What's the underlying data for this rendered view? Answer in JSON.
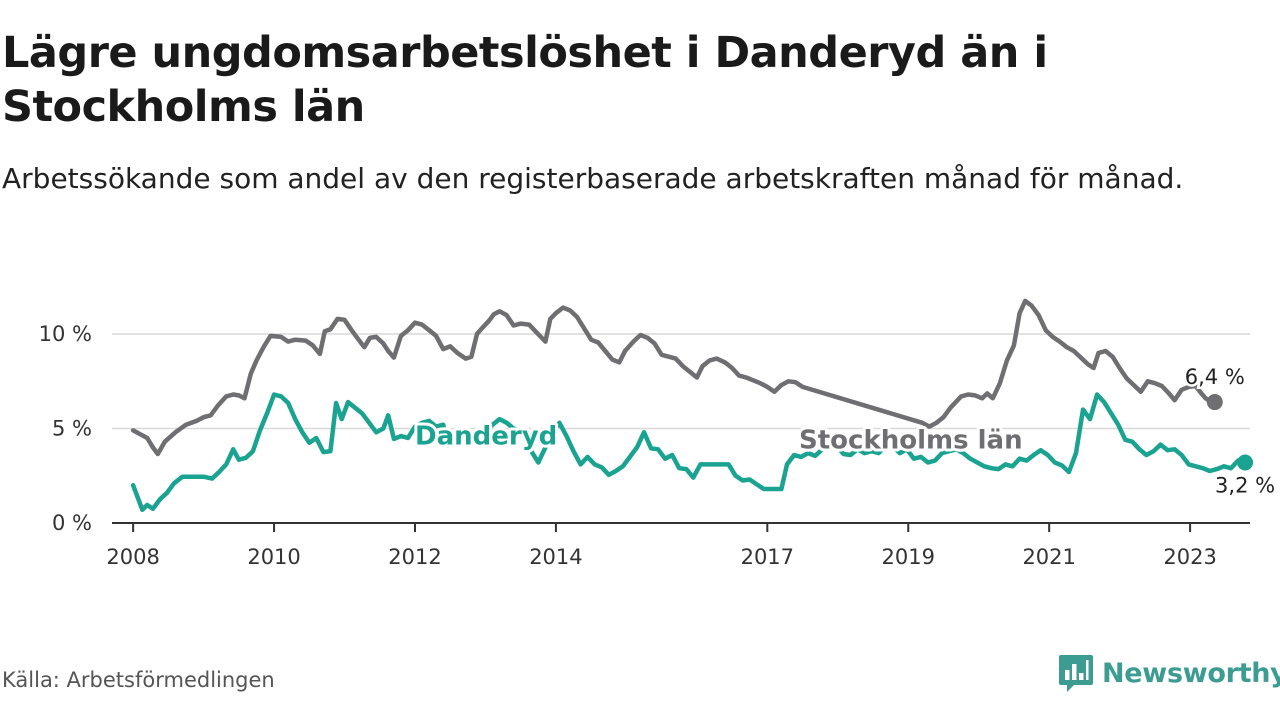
{
  "title": "Lägre ungdomsarbetslöshet i Danderyd än i Stockholms län",
  "subtitle": "Arbetssökande som andel av den registerbaserade arbetskraften månad för månad.",
  "source": "Källa: Arbetsförmedlingen",
  "brand": {
    "name": "Newsworthy",
    "icon": "newsworthy-logo-icon",
    "color": "#3c9c92"
  },
  "chart_data": {
    "type": "line",
    "title": "Lägre ungdomsarbetslöshet i Danderyd än i Stockholms län",
    "xlabel": "",
    "ylabel": "",
    "ylim": [
      0,
      11.8
    ],
    "xlim": [
      2007.7,
      2023.85
    ],
    "grid": true,
    "y_ticks": [
      {
        "value": 0,
        "label": "0 %"
      },
      {
        "value": 5,
        "label": "5 %"
      },
      {
        "value": 10,
        "label": "10 %"
      }
    ],
    "x_ticks": [
      {
        "value": 2008,
        "label": "2008"
      },
      {
        "value": 2010,
        "label": "2010"
      },
      {
        "value": 2012,
        "label": "2012"
      },
      {
        "value": 2014,
        "label": "2014"
      },
      {
        "value": 2017,
        "label": "2017"
      },
      {
        "value": 2019,
        "label": "2019"
      },
      {
        "value": 2021,
        "label": "2021"
      },
      {
        "value": 2023,
        "label": "2023"
      }
    ],
    "series": [
      {
        "name": "Stockholms län",
        "color": "#6e6e73",
        "end_label": "6,4 %",
        "points": [
          [
            2008.0,
            4.9
          ],
          [
            2008.1,
            4.7
          ],
          [
            2008.2,
            4.5
          ],
          [
            2008.28,
            4.0
          ],
          [
            2008.35,
            3.65
          ],
          [
            2008.45,
            4.3
          ],
          [
            2008.6,
            4.8
          ],
          [
            2008.75,
            5.2
          ],
          [
            2008.9,
            5.4
          ],
          [
            2009.0,
            5.6
          ],
          [
            2009.1,
            5.7
          ],
          [
            2009.2,
            6.2
          ],
          [
            2009.32,
            6.7
          ],
          [
            2009.42,
            6.8
          ],
          [
            2009.5,
            6.75
          ],
          [
            2009.58,
            6.6
          ],
          [
            2009.67,
            7.9
          ],
          [
            2009.75,
            8.6
          ],
          [
            2009.85,
            9.3
          ],
          [
            2009.95,
            9.9
          ],
          [
            2010.1,
            9.85
          ],
          [
            2010.2,
            9.6
          ],
          [
            2010.3,
            9.7
          ],
          [
            2010.45,
            9.65
          ],
          [
            2010.55,
            9.4
          ],
          [
            2010.65,
            8.95
          ],
          [
            2010.72,
            10.15
          ],
          [
            2010.8,
            10.25
          ],
          [
            2010.9,
            10.8
          ],
          [
            2011.0,
            10.75
          ],
          [
            2011.1,
            10.2
          ],
          [
            2011.2,
            9.7
          ],
          [
            2011.28,
            9.3
          ],
          [
            2011.36,
            9.8
          ],
          [
            2011.45,
            9.85
          ],
          [
            2011.55,
            9.5
          ],
          [
            2011.62,
            9.1
          ],
          [
            2011.7,
            8.75
          ],
          [
            2011.8,
            9.9
          ],
          [
            2011.9,
            10.2
          ],
          [
            2012.0,
            10.6
          ],
          [
            2012.1,
            10.5
          ],
          [
            2012.2,
            10.2
          ],
          [
            2012.3,
            9.9
          ],
          [
            2012.4,
            9.2
          ],
          [
            2012.5,
            9.35
          ],
          [
            2012.6,
            9.0
          ],
          [
            2012.72,
            8.7
          ],
          [
            2012.8,
            8.8
          ],
          [
            2012.88,
            10.0
          ],
          [
            2012.95,
            10.3
          ],
          [
            2013.05,
            10.7
          ],
          [
            2013.12,
            11.05
          ],
          [
            2013.2,
            11.2
          ],
          [
            2013.3,
            11.0
          ],
          [
            2013.4,
            10.45
          ],
          [
            2013.5,
            10.55
          ],
          [
            2013.62,
            10.5
          ],
          [
            2013.72,
            10.1
          ],
          [
            2013.85,
            9.6
          ],
          [
            2013.92,
            10.8
          ],
          [
            2014.0,
            11.1
          ],
          [
            2014.1,
            11.4
          ],
          [
            2014.2,
            11.25
          ],
          [
            2014.3,
            10.9
          ],
          [
            2014.4,
            10.3
          ],
          [
            2014.5,
            9.7
          ],
          [
            2014.6,
            9.55
          ],
          [
            2014.7,
            9.1
          ],
          [
            2014.8,
            8.65
          ],
          [
            2014.9,
            8.5
          ],
          [
            2014.98,
            9.1
          ],
          [
            2015.1,
            9.6
          ],
          [
            2015.2,
            9.95
          ],
          [
            2015.3,
            9.8
          ],
          [
            2015.4,
            9.5
          ],
          [
            2015.5,
            8.9
          ],
          [
            2015.6,
            8.8
          ],
          [
            2015.7,
            8.7
          ],
          [
            2015.8,
            8.3
          ],
          [
            2015.9,
            8.0
          ],
          [
            2016.0,
            7.7
          ],
          [
            2016.08,
            8.3
          ],
          [
            2016.18,
            8.6
          ],
          [
            2016.28,
            8.7
          ],
          [
            2016.4,
            8.5
          ],
          [
            2016.5,
            8.2
          ],
          [
            2016.6,
            7.8
          ],
          [
            2016.7,
            7.7
          ],
          [
            2016.8,
            7.55
          ],
          [
            2016.9,
            7.4
          ],
          [
            2017.0,
            7.2
          ],
          [
            2017.1,
            6.95
          ],
          [
            2017.2,
            7.3
          ],
          [
            2017.3,
            7.5
          ],
          [
            2017.4,
            7.45
          ],
          [
            2017.5,
            7.2
          ],
          [
            2019.2,
            5.3
          ],
          [
            2019.3,
            5.1
          ],
          [
            2019.4,
            5.3
          ],
          [
            2019.5,
            5.6
          ],
          [
            2019.6,
            6.1
          ],
          [
            2019.75,
            6.7
          ],
          [
            2019.85,
            6.8
          ],
          [
            2019.95,
            6.75
          ],
          [
            2020.05,
            6.6
          ],
          [
            2020.12,
            6.85
          ],
          [
            2020.2,
            6.6
          ],
          [
            2020.3,
            7.4
          ],
          [
            2020.4,
            8.6
          ],
          [
            2020.5,
            9.4
          ],
          [
            2020.58,
            11.1
          ],
          [
            2020.66,
            11.75
          ],
          [
            2020.75,
            11.5
          ],
          [
            2020.85,
            11.0
          ],
          [
            2020.95,
            10.2
          ],
          [
            2021.05,
            9.85
          ],
          [
            2021.15,
            9.6
          ],
          [
            2021.25,
            9.3
          ],
          [
            2021.35,
            9.1
          ],
          [
            2021.45,
            8.75
          ],
          [
            2021.55,
            8.4
          ],
          [
            2021.63,
            8.2
          ],
          [
            2021.7,
            9.0
          ],
          [
            2021.8,
            9.1
          ],
          [
            2021.9,
            8.8
          ],
          [
            2022.0,
            8.2
          ],
          [
            2022.1,
            7.65
          ],
          [
            2022.2,
            7.3
          ],
          [
            2022.3,
            6.95
          ],
          [
            2022.4,
            7.5
          ],
          [
            2022.5,
            7.4
          ],
          [
            2022.6,
            7.25
          ],
          [
            2022.7,
            6.85
          ],
          [
            2022.78,
            6.5
          ],
          [
            2022.88,
            7.05
          ],
          [
            2022.98,
            7.2
          ],
          [
            2023.08,
            7.25
          ],
          [
            2023.15,
            6.9
          ],
          [
            2023.22,
            6.6
          ],
          [
            2023.28,
            6.45
          ],
          [
            2023.35,
            6.4
          ]
        ]
      },
      {
        "name": "Danderyd",
        "color": "#1aa391",
        "end_label": "3,2 %",
        "points": [
          [
            2008.0,
            2.0
          ],
          [
            2008.07,
            1.3
          ],
          [
            2008.13,
            0.7
          ],
          [
            2008.2,
            0.95
          ],
          [
            2008.28,
            0.75
          ],
          [
            2008.38,
            1.25
          ],
          [
            2008.48,
            1.6
          ],
          [
            2008.58,
            2.1
          ],
          [
            2008.7,
            2.45
          ],
          [
            2008.85,
            2.45
          ],
          [
            2009.0,
            2.45
          ],
          [
            2009.12,
            2.35
          ],
          [
            2009.22,
            2.7
          ],
          [
            2009.32,
            3.1
          ],
          [
            2009.42,
            3.9
          ],
          [
            2009.5,
            3.35
          ],
          [
            2009.6,
            3.45
          ],
          [
            2009.7,
            3.8
          ],
          [
            2009.8,
            4.9
          ],
          [
            2009.9,
            5.8
          ],
          [
            2010.0,
            6.8
          ],
          [
            2010.1,
            6.7
          ],
          [
            2010.2,
            6.35
          ],
          [
            2010.3,
            5.5
          ],
          [
            2010.4,
            4.8
          ],
          [
            2010.5,
            4.25
          ],
          [
            2010.6,
            4.5
          ],
          [
            2010.7,
            3.75
          ],
          [
            2010.8,
            3.8
          ],
          [
            2010.88,
            6.35
          ],
          [
            2010.96,
            5.5
          ],
          [
            2011.05,
            6.4
          ],
          [
            2011.15,
            6.1
          ],
          [
            2011.25,
            5.8
          ],
          [
            2011.35,
            5.3
          ],
          [
            2011.45,
            4.8
          ],
          [
            2011.55,
            5.0
          ],
          [
            2011.62,
            5.7
          ],
          [
            2011.7,
            4.45
          ],
          [
            2011.8,
            4.6
          ],
          [
            2011.9,
            4.5
          ],
          [
            2012.0,
            5.1
          ],
          [
            2012.1,
            5.3
          ],
          [
            2012.2,
            5.4
          ],
          [
            2012.3,
            5.1
          ],
          [
            2012.4,
            5.2
          ],
          [
            2012.47,
            4.1
          ],
          [
            2012.55,
            4.5
          ],
          [
            2013.0,
            4.9
          ],
          [
            2013.1,
            5.2
          ],
          [
            2013.2,
            5.5
          ],
          [
            2013.3,
            5.3
          ],
          [
            2013.4,
            5.0
          ],
          [
            2013.55,
            4.7
          ],
          [
            2013.65,
            3.8
          ],
          [
            2013.75,
            3.2
          ],
          [
            2013.85,
            4.0
          ],
          [
            2013.95,
            4.8
          ],
          [
            2014.05,
            5.3
          ],
          [
            2014.15,
            4.6
          ],
          [
            2014.25,
            3.8
          ],
          [
            2014.35,
            3.1
          ],
          [
            2014.45,
            3.5
          ],
          [
            2014.55,
            3.1
          ],
          [
            2014.65,
            2.95
          ],
          [
            2014.75,
            2.55
          ],
          [
            2014.85,
            2.75
          ],
          [
            2014.95,
            3.0
          ],
          [
            2015.05,
            3.5
          ],
          [
            2015.15,
            4.0
          ],
          [
            2015.25,
            4.8
          ],
          [
            2015.35,
            3.95
          ],
          [
            2015.45,
            3.9
          ],
          [
            2015.55,
            3.4
          ],
          [
            2015.65,
            3.6
          ],
          [
            2015.75,
            2.9
          ],
          [
            2015.85,
            2.85
          ],
          [
            2015.95,
            2.4
          ],
          [
            2016.05,
            3.1
          ],
          [
            2016.15,
            3.1
          ],
          [
            2016.3,
            3.1
          ],
          [
            2016.45,
            3.1
          ],
          [
            2016.55,
            2.5
          ],
          [
            2016.65,
            2.25
          ],
          [
            2016.75,
            2.3
          ],
          [
            2016.85,
            2.05
          ],
          [
            2016.95,
            1.8
          ],
          [
            2017.1,
            1.8
          ],
          [
            2017.2,
            1.8
          ],
          [
            2017.28,
            3.1
          ],
          [
            2017.38,
            3.6
          ],
          [
            2017.48,
            3.5
          ],
          [
            2017.58,
            3.7
          ],
          [
            2017.68,
            3.55
          ],
          [
            2017.78,
            3.9
          ],
          [
            2017.88,
            4.0
          ],
          [
            2017.98,
            4.1
          ],
          [
            2018.08,
            3.65
          ],
          [
            2018.18,
            3.6
          ],
          [
            2018.28,
            3.9
          ],
          [
            2018.38,
            3.7
          ],
          [
            2018.48,
            3.8
          ],
          [
            2018.58,
            3.7
          ],
          [
            2018.68,
            4.1
          ],
          [
            2018.78,
            4.05
          ],
          [
            2018.88,
            3.7
          ],
          [
            2018.98,
            3.9
          ],
          [
            2019.08,
            3.4
          ],
          [
            2019.18,
            3.5
          ],
          [
            2019.28,
            3.2
          ],
          [
            2019.38,
            3.3
          ],
          [
            2019.48,
            3.7
          ],
          [
            2019.58,
            3.8
          ],
          [
            2019.68,
            3.9
          ],
          [
            2019.78,
            3.7
          ],
          [
            2019.88,
            3.4
          ],
          [
            2019.98,
            3.2
          ],
          [
            2020.08,
            3.0
          ],
          [
            2020.18,
            2.9
          ],
          [
            2020.28,
            2.85
          ],
          [
            2020.38,
            3.1
          ],
          [
            2020.48,
            3.0
          ],
          [
            2020.58,
            3.4
          ],
          [
            2020.68,
            3.3
          ],
          [
            2020.78,
            3.6
          ],
          [
            2020.88,
            3.85
          ],
          [
            2020.98,
            3.6
          ],
          [
            2021.08,
            3.2
          ],
          [
            2021.18,
            3.05
          ],
          [
            2021.28,
            2.7
          ],
          [
            2021.38,
            3.7
          ],
          [
            2021.48,
            6.0
          ],
          [
            2021.58,
            5.5
          ],
          [
            2021.68,
            6.8
          ],
          [
            2021.78,
            6.4
          ],
          [
            2021.88,
            5.8
          ],
          [
            2021.98,
            5.2
          ],
          [
            2022.08,
            4.4
          ],
          [
            2022.18,
            4.3
          ],
          [
            2022.28,
            3.9
          ],
          [
            2022.38,
            3.6
          ],
          [
            2022.48,
            3.8
          ],
          [
            2022.58,
            4.15
          ],
          [
            2022.68,
            3.85
          ],
          [
            2022.78,
            3.9
          ],
          [
            2022.88,
            3.6
          ],
          [
            2022.98,
            3.1
          ],
          [
            2023.08,
            3.0
          ],
          [
            2023.18,
            2.9
          ],
          [
            2023.28,
            2.75
          ],
          [
            2023.38,
            2.85
          ],
          [
            2023.48,
            3.0
          ],
          [
            2023.58,
            2.9
          ],
          [
            2023.68,
            3.3
          ],
          [
            2023.78,
            3.2
          ]
        ]
      }
    ]
  }
}
